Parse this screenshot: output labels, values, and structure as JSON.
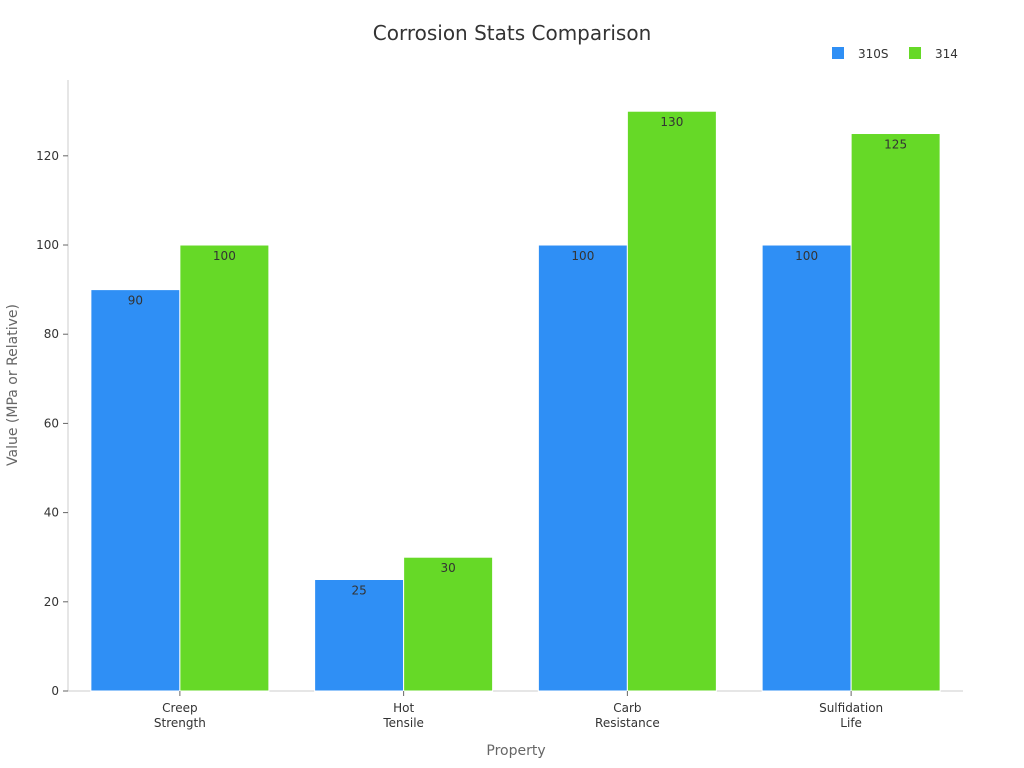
{
  "chart_data": {
    "type": "bar",
    "title": "Corrosion Stats Comparison",
    "xlabel": "Property",
    "ylabel": "Value (MPa or Relative)",
    "categories": [
      [
        "Creep",
        "Strength"
      ],
      [
        "Hot",
        "Tensile"
      ],
      [
        "Carb",
        "Resistance"
      ],
      [
        "Sulfidation",
        "Life"
      ]
    ],
    "series": [
      {
        "name": "310S",
        "color": "#2f8ff5",
        "values": [
          90,
          25,
          100,
          100
        ]
      },
      {
        "name": "314",
        "color": "#66d927",
        "values": [
          100,
          30,
          130,
          125
        ]
      }
    ],
    "ylim": [
      0,
      137
    ],
    "yticks": [
      0,
      20,
      40,
      60,
      80,
      100,
      120
    ],
    "grid": false,
    "legend": "top-right",
    "data_labels": true
  }
}
